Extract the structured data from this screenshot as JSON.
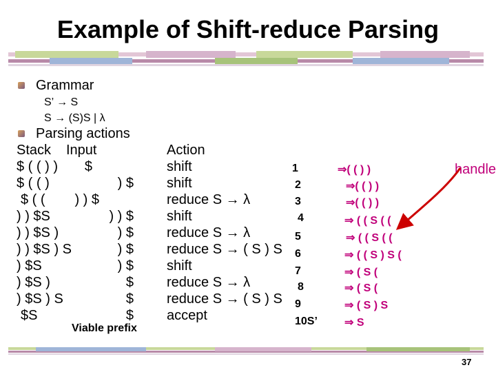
{
  "title": "Example of Shift-reduce Parsing",
  "grammar": {
    "heading": "Grammar",
    "rule1": "S’ → S",
    "rule2": "S → (S)S | λ"
  },
  "actions_heading": "Parsing actions",
  "headers": {
    "stack": "Stack",
    "input": "Input",
    "action": "Action"
  },
  "rows": [
    {
      "stack": "$ ( ( ) )",
      "input": "$",
      "action": "shift",
      "step": "1",
      "deriv": "⇒( ( ) )"
    },
    {
      "stack": "$ ( ( )",
      "input": ") $",
      "action": "shift",
      "step": "2",
      "deriv": "⇒( ( ) )"
    },
    {
      "stack": "$ ( (",
      "input": ") ) $",
      "action": "reduce S → λ",
      "step": "3",
      "deriv": "⇒( ( ) )"
    },
    {
      "stack": ") ) $S",
      "input": ") ) $",
      "action": "shift",
      "step": "4",
      "deriv": "⇒ ( ( S ( ("
    },
    {
      "stack": ") ) $S )",
      "input": ") $",
      "action": "reduce S → λ",
      "step": "5",
      "deriv": "⇒ ( ( S ( ("
    },
    {
      "stack": ") ) $S ) S",
      "input": ") $",
      "action": "reduce S → ( S ) S",
      "step": "6",
      "deriv": "⇒ ( ( S ) S ("
    },
    {
      "stack": ") $S",
      "input": ") $",
      "action": "shift",
      "step": "7",
      "deriv": "⇒ ( S ("
    },
    {
      "stack": ") $S )",
      "input": "$",
      "action": "reduce S → λ",
      "step": "8",
      "deriv": "⇒ ( S ("
    },
    {
      "stack": ") $S ) S",
      "input": "$",
      "action": "reduce S → ( S ) S",
      "step": "9",
      "deriv": "⇒ ( S ) S"
    },
    {
      "stack": "$S",
      "input": "$",
      "action": "accept",
      "step": "10S’",
      "deriv": "⇒ S"
    }
  ],
  "viable_prefix": "Viable prefix",
  "handle_label": "handle",
  "page_number": "37",
  "colors": {
    "accent_pink": "#c0007a",
    "arrow_red": "#cc0000",
    "bar_green": "#c8d89a",
    "bar_mauve": "#b88aa8"
  }
}
